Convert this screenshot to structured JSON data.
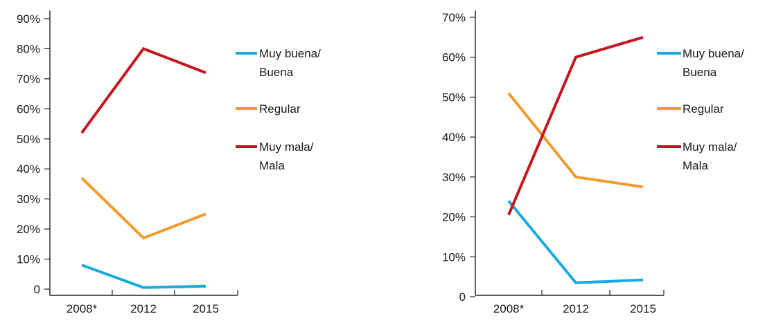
{
  "chart_data": [
    {
      "type": "line",
      "categories": [
        "2008*",
        "2012",
        "2015"
      ],
      "y_ticks": [
        "0",
        "10%",
        "20%",
        "30%",
        "40%",
        "50%",
        "60%",
        "70%",
        "80%",
        "90%"
      ],
      "ylim": [
        0,
        90
      ],
      "grid": false,
      "legend_position": "right",
      "series": [
        {
          "key": "buena",
          "label_lines": [
            "Muy buena/",
            "Buena"
          ],
          "color": "#1aa9e0",
          "values": [
            8,
            0.5,
            1
          ]
        },
        {
          "key": "regular",
          "label_lines": [
            "Regular"
          ],
          "color": "#f39a2b",
          "values": [
            37,
            17,
            25
          ]
        },
        {
          "key": "mala",
          "label_lines": [
            "Muy mala/",
            "Mala"
          ],
          "color": "#c4161c",
          "values": [
            52,
            80,
            72
          ]
        }
      ]
    },
    {
      "type": "line",
      "categories": [
        "2008*",
        "2012",
        "2015"
      ],
      "y_ticks": [
        "0",
        "10%",
        "20%",
        "30%",
        "40%",
        "50%",
        "60%",
        "70%"
      ],
      "ylim": [
        0,
        70
      ],
      "grid": false,
      "legend_position": "right",
      "series": [
        {
          "key": "buena",
          "label_lines": [
            "Muy buena/",
            "Buena"
          ],
          "color": "#1aa9e0",
          "values": [
            24,
            3.5,
            4.2
          ]
        },
        {
          "key": "regular",
          "label_lines": [
            "Regular"
          ],
          "color": "#f39a2b",
          "values": [
            51,
            30,
            27.5
          ]
        },
        {
          "key": "mala",
          "label_lines": [
            "Muy mala/",
            "Mala"
          ],
          "color": "#c4161c",
          "values": [
            20.5,
            60,
            65
          ]
        }
      ]
    }
  ]
}
